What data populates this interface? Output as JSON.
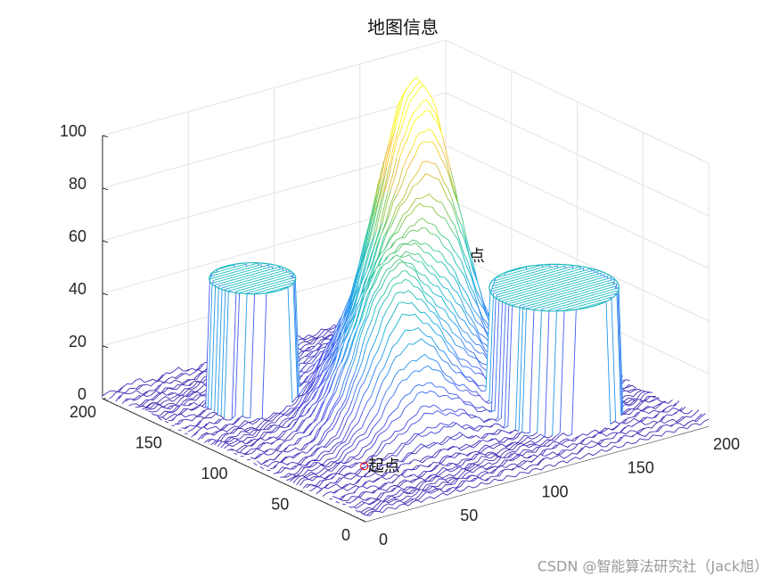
{
  "chart_data": {
    "type": "surface",
    "title": "地图信息",
    "xlim": [
      0,
      200
    ],
    "ylim": [
      0,
      200
    ],
    "zlim": [
      0,
      100
    ],
    "xticks": [
      0,
      50,
      100,
      150,
      200
    ],
    "yticks": [
      0,
      50,
      100,
      150,
      200
    ],
    "zticks": [
      0,
      20,
      40,
      60,
      80,
      100
    ],
    "grid": true,
    "colormap": "parula",
    "peaks": [
      {
        "x": 130,
        "y": 130,
        "height": 95,
        "width": 18
      },
      {
        "x": 105,
        "y": 105,
        "height": 55,
        "width": 22
      },
      {
        "x": 75,
        "y": 80,
        "height": 45,
        "width": 18
      }
    ],
    "cylinders": [
      {
        "x": 46,
        "y": 146,
        "radius": 20,
        "height": 50
      },
      {
        "x": 149,
        "y": 51,
        "radius": 30,
        "height": 50
      }
    ],
    "annotations": [
      {
        "text": "起点",
        "x": 43,
        "y": 57,
        "z": 0,
        "color": "#ff0000"
      },
      {
        "text": "终点",
        "x": 156,
        "y": 140,
        "z": 40,
        "color": "#ff0000"
      }
    ]
  },
  "watermark": "CSDN @智能算法研究社（Jack旭）"
}
